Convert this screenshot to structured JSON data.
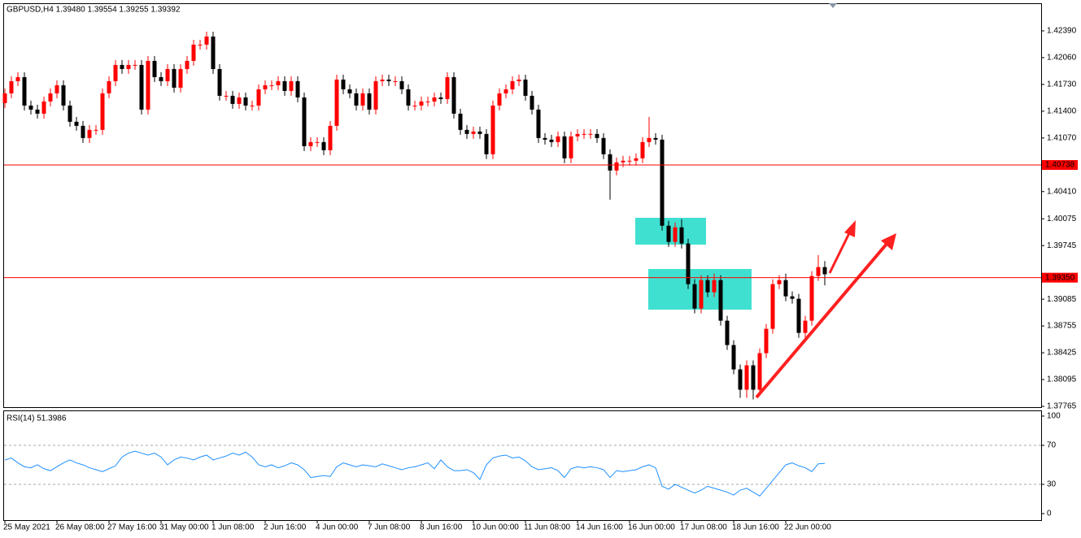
{
  "chart_data": {
    "type": "candlestick",
    "title": "GBPUSD,H4  1.39480 1.39554 1.39255 1.39392",
    "categories": [
      "25 May 2021",
      null,
      null,
      null,
      null,
      null,
      null,
      null,
      "26 May 08:00",
      null,
      null,
      null,
      null,
      null,
      null,
      null,
      "27 May 16:00",
      null,
      null,
      null,
      null,
      null,
      null,
      null,
      "31 May 00:00",
      null,
      null,
      null,
      null,
      null,
      null,
      null,
      "1 Jun 08:00",
      null,
      null,
      null,
      null,
      null,
      null,
      null,
      "2 Jun 16:00",
      null,
      null,
      null,
      null,
      null,
      null,
      null,
      "4 Jun 00:00",
      null,
      null,
      null,
      null,
      null,
      null,
      null,
      "7 Jun 08:00",
      null,
      null,
      null,
      null,
      null,
      null,
      null,
      "8 Jun 16:00",
      null,
      null,
      null,
      null,
      null,
      null,
      null,
      "10 Jun 00:00",
      null,
      null,
      null,
      null,
      null,
      null,
      null,
      "11 Jun 08:00",
      null,
      null,
      null,
      null,
      null,
      null,
      null,
      "14 Jun 16:00",
      null,
      null,
      null,
      null,
      null,
      null,
      null,
      "16 Jun 00:00",
      null,
      null,
      null,
      null,
      null,
      null,
      null,
      "17 Jun 08:00",
      null,
      null,
      null,
      null,
      null,
      null,
      null,
      "18 Jun 16:00",
      null,
      null,
      null,
      null,
      null,
      null,
      null,
      "22 Jun 00:00",
      null,
      null,
      null,
      null,
      null,
      null
    ],
    "open": [
      1.415,
      1.4162,
      1.4177,
      1.4182,
      1.4147,
      1.4142,
      1.4137,
      1.4152,
      1.4162,
      1.4172,
      1.4147,
      1.4127,
      1.4122,
      1.4107,
      1.4117,
      1.4117,
      1.4162,
      1.4177,
      1.4197,
      1.4192,
      1.4197,
      1.4197,
      1.4142,
      1.4202,
      1.4182,
      1.4177,
      1.4192,
      1.4169,
      1.4192,
      1.4202,
      1.4222,
      1.4222,
      1.4232,
      1.4192,
      1.4159,
      1.4159,
      1.4149,
      1.4157,
      1.4147,
      1.4147,
      1.4167,
      1.4172,
      1.4172,
      1.4177,
      1.4165,
      1.4177,
      1.4157,
      1.4097,
      1.4102,
      1.4102,
      1.4092,
      1.4122,
      1.4179,
      1.4167,
      1.4162,
      1.4147,
      1.4162,
      1.4142,
      1.4177,
      1.4179,
      1.4177,
      1.4177,
      1.4167,
      1.4147,
      1.4147,
      1.4152,
      1.4152,
      1.4157,
      1.4155,
      1.4182,
      1.4137,
      1.4117,
      1.4112,
      1.4115,
      1.4112,
      1.4087,
      1.4147,
      1.4162,
      1.4167,
      1.4177,
      1.4179,
      1.4159,
      1.4142,
      1.4107,
      1.4105,
      1.4102,
      1.4109,
      1.4082,
      1.4109,
      1.4112,
      1.4112,
      1.4112,
      1.4107,
      1.4087,
      1.4067,
      1.4077,
      1.4079,
      1.4079,
      1.4082,
      1.4102,
      1.4107,
      1.4105,
      1.3999,
      1.3979,
      1.3997,
      1.3977,
      1.3927,
      1.3897,
      1.3932,
      1.3917,
      1.3932,
      1.3882,
      1.3852,
      1.3822,
      1.3797,
      1.3827,
      1.3797,
      1.3842,
      1.3872,
      1.3927,
      1.3932,
      1.3912,
      1.3909,
      1.3867,
      1.3882,
      1.3937,
      1.3948
    ],
    "high": [
      1.4168,
      1.4183,
      1.4188,
      1.4188,
      1.4153,
      1.4148,
      1.4158,
      1.4168,
      1.4178,
      1.4178,
      1.4153,
      1.4133,
      1.4128,
      1.4123,
      1.4123,
      1.4168,
      1.4183,
      1.4203,
      1.4203,
      1.4203,
      1.4203,
      1.4203,
      1.4208,
      1.4208,
      1.4188,
      1.4198,
      1.4198,
      1.4198,
      1.4208,
      1.4228,
      1.4228,
      1.4238,
      1.4238,
      1.4198,
      1.4165,
      1.4165,
      1.4163,
      1.4163,
      1.4153,
      1.4173,
      1.4178,
      1.4178,
      1.4183,
      1.4183,
      1.4183,
      1.4183,
      1.4163,
      1.4108,
      1.4108,
      1.4108,
      1.4128,
      1.4185,
      1.4185,
      1.4173,
      1.4168,
      1.4168,
      1.4168,
      1.4183,
      1.4185,
      1.4185,
      1.4183,
      1.4183,
      1.4173,
      1.4153,
      1.4158,
      1.4158,
      1.4163,
      1.4163,
      1.4188,
      1.4188,
      1.4143,
      1.4123,
      1.4121,
      1.4121,
      1.4118,
      1.4153,
      1.4168,
      1.4173,
      1.4183,
      1.4185,
      1.4185,
      1.4165,
      1.4148,
      1.4113,
      1.4111,
      1.4115,
      1.4115,
      1.4115,
      1.4118,
      1.4118,
      1.4118,
      1.4118,
      1.4113,
      1.4093,
      1.4083,
      1.4085,
      1.4085,
      1.4088,
      1.4108,
      1.4133,
      1.4113,
      1.4111,
      1.4005,
      1.4003,
      1.4007,
      1.3983,
      1.3933,
      1.3938,
      1.3938,
      1.394,
      1.3938,
      1.3888,
      1.3858,
      1.3828,
      1.3833,
      1.3833,
      1.3848,
      1.3878,
      1.3933,
      1.3938,
      1.394,
      1.3918,
      1.3915,
      1.3888,
      1.3943,
      1.3963,
      1.39554
    ],
    "low": [
      1.4144,
      1.4156,
      1.4171,
      1.4141,
      1.4136,
      1.4131,
      1.4131,
      1.4146,
      1.4156,
      1.4141,
      1.4121,
      1.4116,
      1.4101,
      1.4101,
      1.4111,
      1.4111,
      1.4156,
      1.4171,
      1.4186,
      1.4186,
      1.4191,
      1.4136,
      1.4136,
      1.4176,
      1.4171,
      1.4171,
      1.4163,
      1.4163,
      1.4186,
      1.4196,
      1.4216,
      1.4216,
      1.4186,
      1.4153,
      1.4153,
      1.4143,
      1.4143,
      1.4141,
      1.4141,
      1.4141,
      1.4161,
      1.4166,
      1.4166,
      1.4159,
      1.4159,
      1.4151,
      1.4091,
      1.4091,
      1.4096,
      1.4086,
      1.4086,
      1.4116,
      1.4161,
      1.4156,
      1.4141,
      1.4141,
      1.4136,
      1.4136,
      1.4171,
      1.4171,
      1.4171,
      1.4161,
      1.4141,
      1.4141,
      1.4141,
      1.4146,
      1.4146,
      1.4149,
      1.4149,
      1.4131,
      1.4111,
      1.4106,
      1.4106,
      1.4106,
      1.4081,
      1.4081,
      1.4141,
      1.4156,
      1.4161,
      1.4171,
      1.4153,
      1.4136,
      1.4101,
      1.4099,
      1.4096,
      1.4096,
      1.4076,
      1.4076,
      1.4103,
      1.4106,
      1.4106,
      1.4101,
      1.4081,
      1.4031,
      1.4061,
      1.4071,
      1.4073,
      1.4073,
      1.4076,
      1.4096,
      1.4099,
      1.3993,
      1.3973,
      1.3973,
      1.3971,
      1.3921,
      1.3891,
      1.3891,
      1.3911,
      1.3911,
      1.3876,
      1.3846,
      1.3816,
      1.3787,
      1.3787,
      1.3785,
      1.3791,
      1.3836,
      1.3866,
      1.3921,
      1.3906,
      1.3903,
      1.3861,
      1.3861,
      1.3876,
      1.3931,
      1.39255
    ],
    "close": [
      1.4162,
      1.4177,
      1.4182,
      1.4147,
      1.4142,
      1.4137,
      1.4152,
      1.4162,
      1.4172,
      1.4147,
      1.4127,
      1.4122,
      1.4107,
      1.4117,
      1.4117,
      1.4162,
      1.4177,
      1.4197,
      1.4192,
      1.4197,
      1.4197,
      1.4142,
      1.4202,
      1.4182,
      1.4177,
      1.4192,
      1.4169,
      1.4192,
      1.4202,
      1.4222,
      1.4222,
      1.4232,
      1.4192,
      1.4159,
      1.4159,
      1.4149,
      1.4157,
      1.4147,
      1.4147,
      1.4167,
      1.4172,
      1.4172,
      1.4177,
      1.4165,
      1.4177,
      1.4157,
      1.4097,
      1.4102,
      1.4102,
      1.4092,
      1.4122,
      1.4179,
      1.4167,
      1.4162,
      1.4147,
      1.4162,
      1.4142,
      1.4177,
      1.4179,
      1.4177,
      1.4177,
      1.4167,
      1.4147,
      1.4147,
      1.4152,
      1.4152,
      1.4157,
      1.4155,
      1.4182,
      1.4137,
      1.4117,
      1.4112,
      1.4115,
      1.4112,
      1.4087,
      1.4147,
      1.4162,
      1.4167,
      1.4177,
      1.4179,
      1.4159,
      1.4142,
      1.4107,
      1.4105,
      1.4102,
      1.4109,
      1.4082,
      1.4109,
      1.4112,
      1.4112,
      1.4112,
      1.4107,
      1.4087,
      1.4067,
      1.4077,
      1.4079,
      1.4079,
      1.4082,
      1.4102,
      1.4107,
      1.4105,
      1.3999,
      1.3979,
      1.3997,
      1.3977,
      1.3927,
      1.3897,
      1.3932,
      1.3917,
      1.3932,
      1.3882,
      1.3852,
      1.3822,
      1.3797,
      1.3827,
      1.3797,
      1.3842,
      1.3872,
      1.3927,
      1.3932,
      1.3912,
      1.3909,
      1.3867,
      1.3882,
      1.3937,
      1.3948,
      1.39392
    ],
    "up_color": "#ff0000",
    "down_color": "#000000",
    "ylim": [
      1.37745,
      1.4272
    ],
    "yticks": [
      {
        "value": 1.4239,
        "label": "1.42390"
      },
      {
        "value": 1.4206,
        "label": "1.42060"
      },
      {
        "value": 1.4173,
        "label": "1.41730"
      },
      {
        "value": 1.414,
        "label": "1.41400"
      },
      {
        "value": 1.4107,
        "label": "1.41070"
      },
      {
        "value": 1.4041,
        "label": "1.40410"
      },
      1.40075,
      1.39745,
      1.39085,
      1.38755,
      1.38425,
      1.38095,
      1.37765
    ],
    "levels": [
      1.40738,
      {
        "value": 1.3935,
        "label": "1.39350"
      }
    ],
    "level_color": "#ff0000",
    "rsi": {
      "label": "RSI(14) 51.3986",
      "color": "#1e90ff",
      "values": [
        55,
        57,
        52,
        48,
        47,
        50,
        46,
        44,
        48,
        52,
        55,
        52,
        50,
        47,
        45,
        43,
        46,
        49,
        58,
        62,
        64,
        62,
        60,
        62,
        58,
        50,
        55,
        58,
        57,
        55,
        58,
        60,
        55,
        57,
        59,
        62,
        60,
        63,
        58,
        50,
        48,
        50,
        47,
        49,
        52,
        50,
        45,
        37,
        38,
        39,
        38,
        48,
        52,
        50,
        48,
        50,
        49,
        48,
        51,
        49,
        47,
        45,
        47,
        48,
        50,
        52,
        46,
        55,
        48,
        44,
        44,
        45,
        42,
        35,
        50,
        57,
        59,
        60,
        57,
        58,
        54,
        48,
        45,
        46,
        47,
        44,
        37,
        46,
        48,
        47,
        48,
        47,
        45,
        37,
        44,
        43,
        44,
        45,
        48,
        50,
        47,
        28,
        25,
        30,
        27,
        24,
        21,
        24,
        28,
        26,
        24,
        22,
        19,
        24,
        26,
        22,
        18,
        26,
        34,
        42,
        50,
        52,
        49,
        47,
        43,
        51,
        51.3986
      ],
      "ylim": [
        -6.7,
        105.8
      ],
      "yticks": [
        100,
        70,
        30,
        0
      ],
      "levels": [
        70,
        30
      ]
    }
  }
}
